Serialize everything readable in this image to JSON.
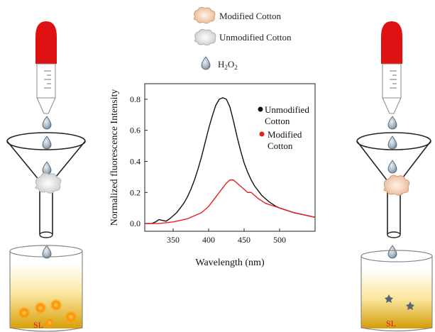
{
  "legend": {
    "modified_cotton": "Modified Cotton",
    "unmodified_cotton": "Unmodified Cotton",
    "h2o2_base": "H",
    "h2o2_sub1": "2",
    "h2o2_mid": "O",
    "h2o2_sub2": "2"
  },
  "beakers": {
    "left_label": "SL",
    "right_label": "SL"
  },
  "colors": {
    "dropper_bulb": "#dd1111",
    "unmodified_line": "#111111",
    "modified_line": "#e02020",
    "liquid_top": "#ffffff",
    "liquid_bottom": "#d8a00a",
    "fluorescent_dot": "#ff7a00",
    "quenched_dot": "#556677"
  },
  "chart_data": {
    "type": "line",
    "xlabel": "Wavelength (nm)",
    "ylabel": "Normalized fluorescence Intensity",
    "xlim": [
      310,
      550
    ],
    "ylim": [
      -0.05,
      0.9
    ],
    "xticks": [
      "350",
      "400",
      "450",
      "500"
    ],
    "yticks": [
      "0.0",
      "0.2",
      "0.4",
      "0.6",
      "0.8"
    ],
    "series": [
      {
        "name_line1": "Unmodified",
        "name_line2": "Cotton",
        "color": "#111111",
        "x": [
          310,
          320,
          325,
          330,
          335,
          340,
          345,
          350,
          355,
          360,
          365,
          370,
          375,
          380,
          385,
          390,
          395,
          400,
          405,
          410,
          415,
          420,
          425,
          430,
          435,
          440,
          445,
          450,
          455,
          460,
          465,
          470,
          475,
          480,
          485,
          490,
          495,
          500,
          510,
          520,
          530,
          540,
          550
        ],
        "y": [
          0.0,
          0.0,
          0.01,
          0.025,
          0.02,
          0.015,
          0.03,
          0.05,
          0.07,
          0.1,
          0.13,
          0.17,
          0.22,
          0.28,
          0.35,
          0.43,
          0.52,
          0.61,
          0.69,
          0.76,
          0.8,
          0.81,
          0.8,
          0.75,
          0.66,
          0.56,
          0.47,
          0.39,
          0.33,
          0.28,
          0.24,
          0.21,
          0.18,
          0.16,
          0.14,
          0.125,
          0.11,
          0.1,
          0.085,
          0.07,
          0.06,
          0.05,
          0.04
        ]
      },
      {
        "name_line1": "Modified",
        "name_line2": "Cotton",
        "color": "#e02020",
        "x": [
          310,
          320,
          330,
          340,
          350,
          360,
          370,
          380,
          390,
          395,
          400,
          405,
          410,
          415,
          420,
          425,
          430,
          435,
          440,
          445,
          450,
          455,
          460,
          465,
          470,
          475,
          480,
          490,
          500,
          510,
          520,
          530,
          540,
          550
        ],
        "y": [
          0.0,
          0.0,
          0.0,
          0.005,
          0.01,
          0.02,
          0.03,
          0.05,
          0.07,
          0.09,
          0.11,
          0.14,
          0.17,
          0.2,
          0.23,
          0.26,
          0.28,
          0.28,
          0.26,
          0.24,
          0.22,
          0.2,
          0.2,
          0.18,
          0.16,
          0.145,
          0.13,
          0.115,
          0.1,
          0.085,
          0.07,
          0.06,
          0.05,
          0.04
        ]
      }
    ],
    "grid": false
  }
}
